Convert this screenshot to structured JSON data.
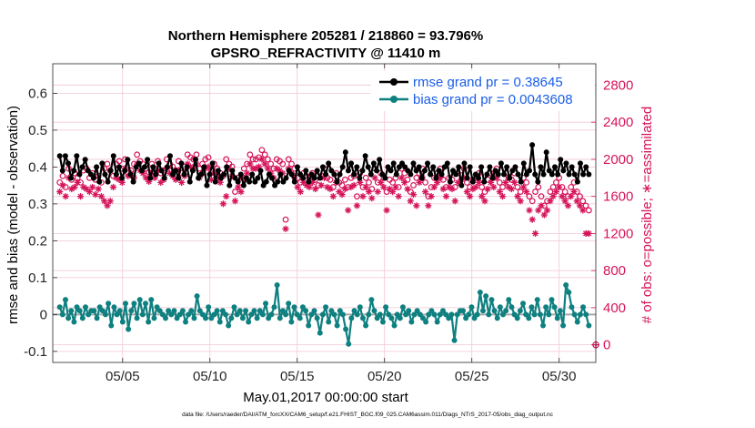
{
  "colors": {
    "rmse": "#000000",
    "bias": "#0f8080",
    "obs": "#d6145a",
    "legend_text": "#1a5ee6",
    "grid": "#f2c6d6",
    "zero_line": "#a8a8a8"
  },
  "chart_data": {
    "type": "line",
    "title": [
      "Northern Hemisphere 205281 / 218860 = 93.796%",
      "GPSRO_REFRACTIVITY @ 11410 m"
    ],
    "xlabel": "May.01,2017 00:00:00 start",
    "ylabel": "rmse and bias (model - observation)",
    "y2label": "# of obs: o=possible; ∗=assimilated",
    "xlim": [
      1,
      32.1
    ],
    "ylim": [
      -0.13,
      0.68
    ],
    "y2lim": [
      -190,
      3030
    ],
    "x_ticks": [
      5,
      10,
      15,
      20,
      25,
      30
    ],
    "x_tick_labels": [
      "05/05",
      "05/10",
      "05/15",
      "05/20",
      "05/25",
      "05/30"
    ],
    "y_ticks": [
      -0.1,
      0,
      0.1,
      0.2,
      0.3,
      0.4,
      0.5,
      0.6
    ],
    "y_tick_labels": [
      "-0.1",
      "0",
      "0.1",
      "0.2",
      "0.3",
      "0.4",
      "0.5",
      "0.6"
    ],
    "y2_ticks": [
      0,
      400,
      800,
      1200,
      1600,
      2000,
      2400,
      2800
    ],
    "y2_tick_labels": [
      "0",
      "400",
      "800",
      "1200",
      "1600",
      "2000",
      "2400",
      "2800"
    ],
    "grid": true,
    "legend_position": "top-right",
    "series": [
      {
        "name": "rmse grand pr = 0.38645",
        "axis": "left",
        "marker": "filled-circle",
        "values": [
          0.43,
          0.39,
          0.43,
          0.41,
          0.37,
          0.39,
          0.43,
          0.38,
          0.4,
          0.42,
          0.39,
          0.38,
          0.37,
          0.4,
          0.36,
          0.41,
          0.38,
          0.36,
          0.39,
          0.43,
          0.38,
          0.4,
          0.37,
          0.39,
          0.42,
          0.38,
          0.36,
          0.4,
          0.41,
          0.39,
          0.4,
          0.42,
          0.37,
          0.4,
          0.38,
          0.41,
          0.39,
          0.37,
          0.4,
          0.43,
          0.38,
          0.39,
          0.37,
          0.41,
          0.38,
          0.4,
          0.36,
          0.39,
          0.42,
          0.37,
          0.38,
          0.4,
          0.35,
          0.38,
          0.41,
          0.36,
          0.39,
          0.37,
          0.38,
          0.4,
          0.35,
          0.39,
          0.37,
          0.36,
          0.38,
          0.35,
          0.37,
          0.36,
          0.38,
          0.36,
          0.37,
          0.39,
          0.35,
          0.36,
          0.38,
          0.37,
          0.35,
          0.36,
          0.38,
          0.36,
          0.37,
          0.39,
          0.38,
          0.36,
          0.4,
          0.38,
          0.37,
          0.39,
          0.36,
          0.38,
          0.37,
          0.39,
          0.37,
          0.4,
          0.38,
          0.41,
          0.39,
          0.38,
          0.36,
          0.38,
          0.4,
          0.44,
          0.39,
          0.41,
          0.38,
          0.4,
          0.37,
          0.39,
          0.43,
          0.4,
          0.38,
          0.41,
          0.39,
          0.42,
          0.38,
          0.37,
          0.4,
          0.39,
          0.41,
          0.38,
          0.4,
          0.41,
          0.4,
          0.39,
          0.38,
          0.41,
          0.39,
          0.4,
          0.37,
          0.39,
          0.41,
          0.38,
          0.4,
          0.37,
          0.39,
          0.38,
          0.4,
          0.41,
          0.36,
          0.39,
          0.38,
          0.4,
          0.35,
          0.41,
          0.37,
          0.4,
          0.36,
          0.38,
          0.37,
          0.4,
          0.36,
          0.38,
          0.4,
          0.37,
          0.39,
          0.38,
          0.41,
          0.38,
          0.4,
          0.37,
          0.39,
          0.4,
          0.38,
          0.36,
          0.41,
          0.38,
          0.39,
          0.46,
          0.38,
          0.36,
          0.4,
          0.38,
          0.44,
          0.39,
          0.38,
          0.4,
          0.38,
          0.42,
          0.39,
          0.41,
          0.38,
          0.4,
          0.38,
          0.36,
          0.41,
          0.38,
          0.4,
          0.38
        ]
      },
      {
        "name": "bias grand pr = 0.0043608",
        "axis": "left",
        "marker": "filled-circle",
        "values": [
          0.02,
          0.0,
          0.04,
          -0.01,
          0.01,
          -0.02,
          0.02,
          0.01,
          -0.01,
          0.02,
          0.0,
          0.01,
          0.01,
          -0.01,
          0.02,
          0.01,
          0.0,
          0.03,
          -0.03,
          0.02,
          0.0,
          0.01,
          -0.02,
          0.03,
          -0.04,
          0.01,
          0.03,
          -0.01,
          0.04,
          0.0,
          0.03,
          -0.02,
          0.04,
          -0.01,
          0.02,
          0.01,
          0.0,
          -0.01,
          0.01,
          0.0,
          0.01,
          -0.01,
          0.0,
          0.01,
          -0.02,
          0.0,
          0.01,
          -0.01,
          0.05,
          0.01,
          0.0,
          -0.01,
          0.02,
          -0.01,
          0.0,
          0.01,
          -0.02,
          0.01,
          0.0,
          -0.03,
          -0.01,
          0.02,
          0.0,
          0.01,
          -0.01,
          0.01,
          -0.02,
          0.0,
          0.01,
          -0.01,
          0.01,
          0.0,
          0.03,
          -0.01,
          0.0,
          0.02,
          0.08,
          -0.01,
          0.01,
          0.0,
          0.03,
          -0.02,
          0.02,
          0.0,
          -0.01,
          0.02,
          0.01,
          -0.03,
          0.0,
          0.01,
          -0.01,
          -0.05,
          0.0,
          0.02,
          -0.02,
          0.01,
          0.0,
          -0.03,
          0.01,
          0.0,
          -0.04,
          -0.08,
          -0.01,
          0.01,
          0.0,
          0.02,
          -0.01,
          -0.03,
          0.0,
          0.04,
          0.01,
          -0.01,
          0.0,
          -0.02,
          0.02,
          0.0,
          -0.01,
          -0.03,
          0.0,
          -0.01,
          0.02,
          0.0,
          0.01,
          -0.02,
          0.0,
          0.01,
          0.0,
          -0.01,
          -0.02,
          0.0,
          0.01,
          0.0,
          -0.02,
          0.0,
          0.01,
          0.0,
          -0.01,
          0.0,
          -0.07,
          0.0,
          0.01,
          0.01,
          -0.01,
          0.0,
          0.02,
          -0.01,
          0.0,
          0.06,
          0.01,
          0.05,
          0.0,
          0.04,
          0.01,
          -0.01,
          0.02,
          0.0,
          0.01,
          0.04,
          0.02,
          0.0,
          -0.01,
          0.01,
          0.03,
          0.0,
          -0.01,
          0.02,
          0.0,
          0.04,
          0.0,
          -0.03,
          0.02,
          0.0,
          0.04,
          0.02,
          -0.01,
          0.01,
          -0.03,
          0.08,
          0.06,
          0.02,
          0.0,
          -0.02,
          0.0,
          0.02,
          0.0,
          -0.03
        ]
      },
      {
        "name": "possible obs (o)",
        "axis": "right",
        "marker": "open-circle",
        "values": [
          1750,
          1820,
          1700,
          1900,
          1780,
          1850,
          1800,
          1750,
          1880,
          1900,
          1800,
          1850,
          1780,
          1820,
          1750,
          1900,
          1950,
          1880,
          1820,
          1950,
          1980,
          1900,
          2000,
          1850,
          1880,
          1950,
          2050,
          1980,
          1950,
          1900,
          1860,
          1950,
          1900,
          1980,
          1850,
          1880,
          2000,
          1950,
          1920,
          1880,
          1980,
          1850,
          1920,
          2050,
          2020,
          2000,
          2050,
          1900,
          1950,
          2000,
          2020,
          1880,
          1950,
          1900,
          1850,
          1820,
          2000,
          1950,
          1920,
          1650,
          1800,
          1750,
          1900,
          1950,
          2050,
          2000,
          2000,
          2020,
          2100,
          2050,
          2000,
          1950,
          1900,
          2000,
          1980,
          1950,
          1350,
          2000,
          1950,
          1900,
          1800,
          1750,
          1850,
          1820,
          1800,
          1850,
          1780,
          1720,
          1820,
          1900,
          1800,
          1780,
          1700,
          1850,
          1750,
          1720,
          1780,
          1700,
          1800,
          1820,
          1600,
          1850,
          1700,
          1800,
          1750,
          1680,
          1900,
          1750,
          1850,
          1800,
          1650,
          1780,
          1750,
          1800,
          1700,
          1900,
          1850,
          1780,
          1650,
          1720,
          1800,
          1850,
          1900,
          1750,
          1600,
          1700,
          1800,
          1850,
          1900,
          1780,
          1700,
          1800,
          1780,
          1700,
          1850,
          1880,
          1900,
          1750,
          1700,
          1780,
          1800,
          1850,
          1700,
          1650,
          1780,
          1850,
          1800,
          1900,
          1750,
          1700,
          1850,
          1800,
          1780,
          1850,
          1700,
          1650,
          1800,
          1750,
          1600,
          1550,
          1650,
          1700,
          1600,
          1500,
          1550,
          1650,
          1700,
          1750,
          1800,
          1700,
          1650,
          1600,
          1700,
          1750,
          1650,
          1600,
          1550,
          1500,
          1450
        ]
      },
      {
        "name": "assimilated obs (∗)",
        "axis": "right",
        "marker": "asterisk",
        "values": [
          1650,
          1720,
          1600,
          1800,
          1680,
          1700,
          1750,
          1600,
          1700,
          1680,
          1650,
          1700,
          1620,
          1680,
          1600,
          1550,
          1500,
          1550,
          1700,
          1800,
          1780,
          1750,
          1900,
          1820,
          1850,
          1800,
          1950,
          1880,
          1850,
          1800,
          1760,
          1850,
          1800,
          1880,
          1750,
          1780,
          1900,
          1850,
          1820,
          1780,
          1880,
          1750,
          1820,
          1950,
          1920,
          1900,
          1950,
          1800,
          1850,
          1900,
          1920,
          1780,
          1850,
          1800,
          1750,
          1520,
          1600,
          1900,
          1820,
          1550,
          1700,
          1650,
          1800,
          1850,
          1950,
          1900,
          1900,
          1920,
          2000,
          1950,
          1900,
          1850,
          1800,
          1900,
          1880,
          1850,
          1250,
          1900,
          1850,
          1800,
          1700,
          1650,
          1750,
          1720,
          1700,
          1750,
          1680,
          1400,
          1720,
          1800,
          1700,
          1680,
          1600,
          1750,
          1650,
          1620,
          1680,
          1450,
          1700,
          1720,
          1500,
          1750,
          1600,
          1700,
          1650,
          1580,
          1800,
          1650,
          1750,
          1700,
          1450,
          1680,
          1650,
          1700,
          1600,
          1800,
          1750,
          1680,
          1550,
          1620,
          1500,
          1750,
          1800,
          1650,
          1500,
          1600,
          1700,
          1750,
          1800,
          1680,
          1600,
          1700,
          1680,
          1550,
          1750,
          1780,
          1800,
          1650,
          1600,
          1680,
          1700,
          1750,
          1600,
          1550,
          1680,
          1750,
          1700,
          1800,
          1650,
          1600,
          1750,
          1700,
          1680,
          1750,
          1600,
          1550,
          1700,
          1650,
          1450,
          1350,
          1200,
          1450,
          1500,
          1400,
          1450,
          1550,
          1600,
          1650,
          1700,
          1600,
          1550,
          1500,
          1600,
          1650,
          1550,
          1500,
          1450,
          1200,
          1200
        ]
      }
    ],
    "extra_points": [
      {
        "series": "possible obs (o)",
        "x": 32.1,
        "y2": 0
      }
    ]
  },
  "footnote": "data file: /Users/raeder/DAI/ATM_forcXX/CAM6_setup/f.e21.FHIST_BGC.f09_025.CAM6assim.011/Diags_NTrS_2017-05/obs_diag_output.nc"
}
